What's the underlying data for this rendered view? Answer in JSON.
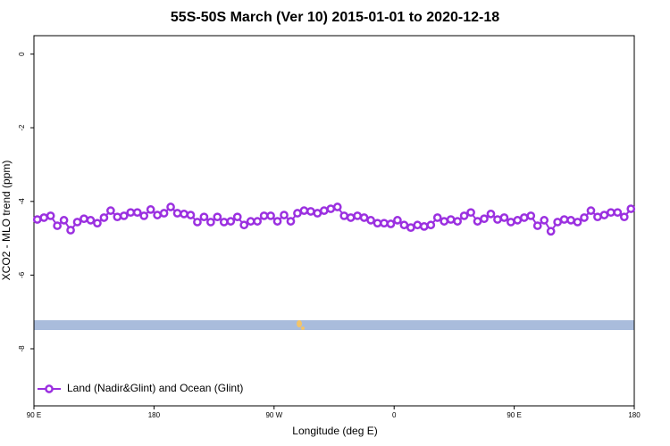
{
  "chart_data": {
    "type": "line",
    "title": "55S-50S March (Ver 10)   2015-01-01 to 2020-12-18",
    "x_label": "Longitude (deg E)",
    "y_label": "XCO2 - MLO trend (ppm)",
    "xlim": [
      90,
      540
    ],
    "xticks": [
      {
        "value": 90,
        "label": "90 E"
      },
      {
        "value": 180,
        "label": "180"
      },
      {
        "value": 270,
        "label": "90 W"
      },
      {
        "value": 360,
        "label": "0"
      },
      {
        "value": 450,
        "label": "90 E"
      },
      {
        "value": 540,
        "label": "180"
      }
    ],
    "ylim": [
      -9.55,
      0.5
    ],
    "yticks": [
      0,
      -2,
      -4,
      -6,
      -8
    ],
    "legend": "bottom-left",
    "x": [
      92.5,
      97.5,
      102.5,
      107.5,
      112.5,
      117.5,
      122.5,
      127.5,
      132.5,
      137.5,
      142.5,
      147.5,
      152.5,
      157.5,
      162.5,
      167.5,
      172.5,
      177.5,
      182.5,
      187.5,
      192.5,
      197.5,
      202.5,
      207.5,
      212.5,
      217.5,
      222.5,
      227.5,
      232.5,
      237.5,
      242.5,
      247.5,
      252.5,
      257.5,
      262.5,
      267.5,
      272.5,
      277.5,
      282.5,
      287.5,
      292.5,
      297.5,
      302.5,
      307.5,
      312.5,
      317.5,
      322.5,
      327.5,
      332.5,
      337.5,
      342.5,
      347.5,
      352.5,
      357.5,
      362.5,
      367.5,
      372.5,
      377.5,
      382.5,
      387.5,
      392.5,
      397.5,
      402.5,
      407.5,
      412.5,
      417.5,
      422.5,
      427.5,
      432.5,
      437.5,
      442.5,
      447.5,
      452.5,
      457.5,
      462.5,
      467.5,
      472.5,
      477.5,
      482.5,
      487.5,
      492.5,
      497.5,
      502.5,
      507.5,
      512.5,
      517.5,
      522.5,
      527.5,
      532.5,
      537.5
    ],
    "series": [
      {
        "name": "Land (Nadir&Glint) and Ocean (Glint)",
        "color": "#9b30e0",
        "values": [
          -4.49,
          -4.44,
          -4.39,
          -4.66,
          -4.51,
          -4.78,
          -4.56,
          -4.47,
          -4.51,
          -4.59,
          -4.44,
          -4.25,
          -4.42,
          -4.39,
          -4.3,
          -4.3,
          -4.39,
          -4.22,
          -4.37,
          -4.32,
          -4.15,
          -4.32,
          -4.34,
          -4.37,
          -4.56,
          -4.42,
          -4.56,
          -4.42,
          -4.56,
          -4.54,
          -4.42,
          -4.64,
          -4.54,
          -4.54,
          -4.39,
          -4.39,
          -4.54,
          -4.37,
          -4.54,
          -4.32,
          -4.25,
          -4.27,
          -4.32,
          -4.25,
          -4.2,
          -4.15,
          -4.39,
          -4.44,
          -4.39,
          -4.44,
          -4.51,
          -4.59,
          -4.59,
          -4.61,
          -4.51,
          -4.64,
          -4.71,
          -4.64,
          -4.68,
          -4.64,
          -4.44,
          -4.54,
          -4.49,
          -4.54,
          -4.39,
          -4.3,
          -4.54,
          -4.47,
          -4.34,
          -4.49,
          -4.44,
          -4.56,
          -4.51,
          -4.44,
          -4.39,
          -4.66,
          -4.51,
          -4.81,
          -4.56,
          -4.49,
          -4.51,
          -4.56,
          -4.44,
          -4.25,
          -4.42,
          -4.37,
          -4.3,
          -4.3,
          -4.42,
          -4.2
        ]
      }
    ]
  }
}
